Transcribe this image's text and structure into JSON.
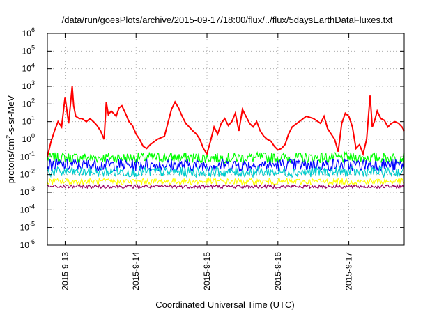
{
  "chart_data": {
    "type": "line",
    "title": "/data/run/goesPlots/archive/2015-09-17/18:00/flux/../flux/5daysEarthDataFluxes.txt",
    "xlabel": "Coordinated Universal Time (UTC)",
    "ylabel": {
      "base": "protons/cm",
      "sup": "2",
      "tail": "-s-sr-MeV"
    },
    "yscale": "log",
    "ylim": [
      1e-06,
      1000000.0
    ],
    "xlim": [
      12.75,
      17.78
    ],
    "grid": true,
    "x_ticks": [
      {
        "value": 13,
        "label": "2015-9-13"
      },
      {
        "value": 14,
        "label": "2015-9-14"
      },
      {
        "value": 15,
        "label": "2015-9-15"
      },
      {
        "value": 16,
        "label": "2015-9-16"
      },
      {
        "value": 17,
        "label": "2015-9-17"
      }
    ],
    "y_ticks": [
      {
        "value": -6,
        "base": "10",
        "exp": "-6"
      },
      {
        "value": -5,
        "base": "10",
        "exp": "-5"
      },
      {
        "value": -4,
        "base": "10",
        "exp": "-4"
      },
      {
        "value": -3,
        "base": "10",
        "exp": "-3"
      },
      {
        "value": -2,
        "base": "10",
        "exp": "-2"
      },
      {
        "value": -1,
        "base": "10",
        "exp": "-1"
      },
      {
        "value": 0,
        "base": "10",
        "exp": "0"
      },
      {
        "value": 1,
        "base": "10",
        "exp": "1"
      },
      {
        "value": 2,
        "base": "10",
        "exp": "2"
      },
      {
        "value": 3,
        "base": "10",
        "exp": "3"
      },
      {
        "value": 4,
        "base": "10",
        "exp": "4"
      },
      {
        "value": 5,
        "base": "10",
        "exp": "5"
      },
      {
        "value": 6,
        "base": "10",
        "exp": "6"
      }
    ],
    "series": [
      {
        "color": "#ff0000",
        "x": [
          12.75,
          12.8,
          12.85,
          12.9,
          12.95,
          13.0,
          13.05,
          13.1,
          13.12,
          13.15,
          13.2,
          13.24,
          13.27,
          13.3,
          13.35,
          13.4,
          13.45,
          13.5,
          13.55,
          13.58,
          13.61,
          13.65,
          13.7,
          13.72,
          13.76,
          13.8,
          13.85,
          13.9,
          13.95,
          14.0,
          14.05,
          14.1,
          14.15,
          14.2,
          14.3,
          14.4,
          14.5,
          14.55,
          14.6,
          14.65,
          14.7,
          14.75,
          14.8,
          14.85,
          14.9,
          14.95,
          15.0,
          15.05,
          15.1,
          15.15,
          15.2,
          15.25,
          15.3,
          15.35,
          15.4,
          15.45,
          15.5,
          15.55,
          15.6,
          15.65,
          15.7,
          15.75,
          15.8,
          15.85,
          15.9,
          15.95,
          16.0,
          16.05,
          16.1,
          16.15,
          16.2,
          16.3,
          16.4,
          16.5,
          16.6,
          16.65,
          16.7,
          16.8,
          16.85,
          16.9,
          16.95,
          17.0,
          17.05,
          17.1,
          17.15,
          17.2,
          17.25,
          17.3,
          17.33,
          17.36,
          17.4,
          17.45,
          17.5,
          17.55,
          17.6,
          17.65,
          17.7,
          17.75,
          17.78
        ],
        "y": [
          0.1,
          0.7,
          3,
          10,
          5,
          250,
          8,
          1000,
          80,
          20,
          15,
          15,
          12,
          10,
          15,
          10,
          6,
          3,
          1,
          130,
          25,
          40,
          25,
          20,
          60,
          80,
          30,
          10,
          6,
          2,
          1,
          0.4,
          0.3,
          0.5,
          1,
          1.5,
          50,
          130,
          60,
          20,
          8,
          5,
          3,
          2,
          1,
          0.3,
          0.15,
          0.8,
          5,
          2,
          8,
          15,
          6,
          10,
          30,
          3,
          50,
          20,
          8,
          5,
          10,
          3,
          1.5,
          1,
          0.8,
          0.4,
          0.25,
          0.3,
          0.5,
          2,
          5,
          10,
          20,
          15,
          8,
          20,
          4,
          1,
          0.2,
          8,
          30,
          20,
          5,
          0.3,
          0.5,
          0.15,
          1,
          300,
          5,
          10,
          40,
          15,
          12,
          5,
          8,
          10,
          8,
          5,
          3
        ]
      },
      {
        "color": "#00ff00",
        "x": [
          12.75,
          17.78
        ],
        "y": [
          0.09,
          0.09
        ]
      },
      {
        "color": "#0000ff",
        "x": [
          12.75,
          17.78
        ],
        "y": [
          0.035,
          0.035
        ]
      },
      {
        "color": "#00cccc",
        "x": [
          12.75,
          17.78
        ],
        "y": [
          0.014,
          0.014
        ]
      },
      {
        "color": "#ffff00",
        "x": [
          12.75,
          17.78
        ],
        "y": [
          0.004,
          0.004
        ]
      },
      {
        "color": "#990066",
        "x": [
          12.75,
          17.78
        ],
        "y": [
          0.0021,
          0.0021
        ]
      }
    ]
  }
}
